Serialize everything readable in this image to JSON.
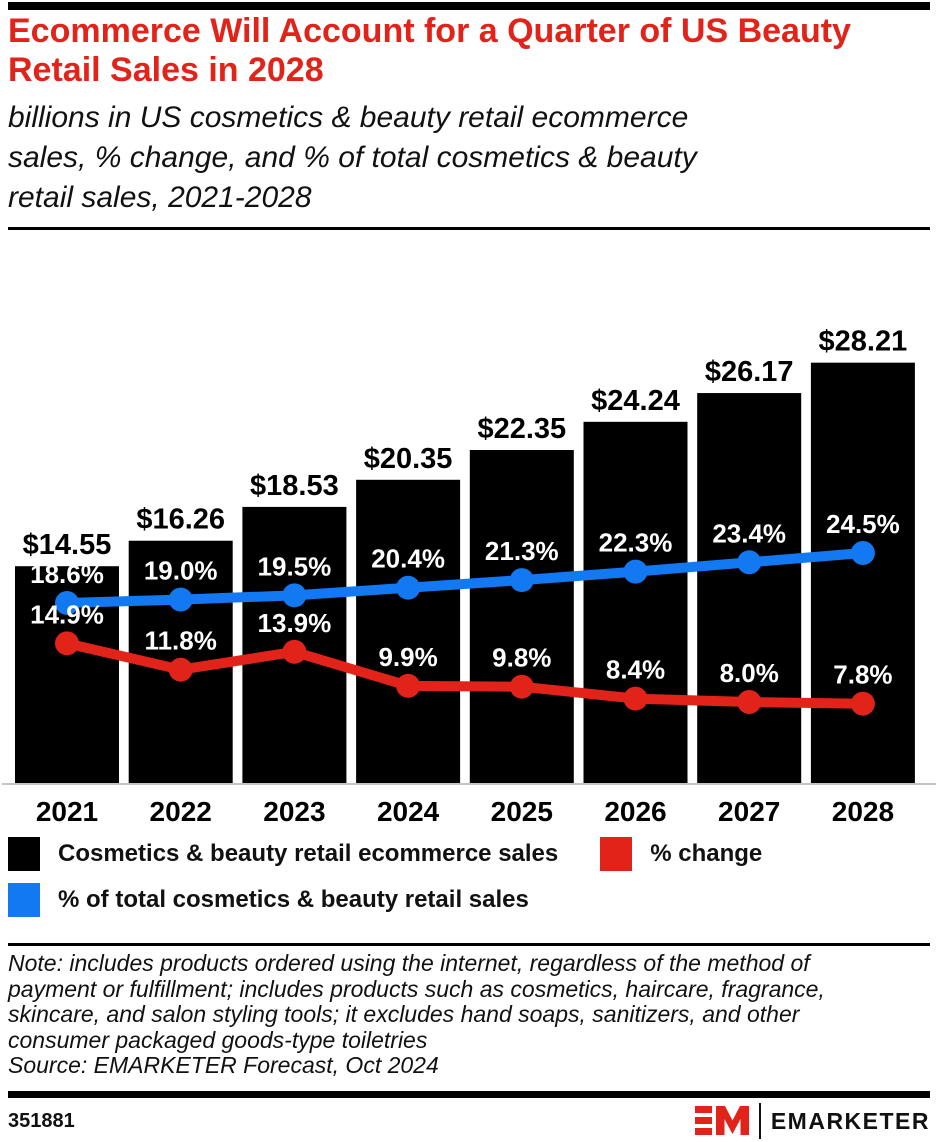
{
  "theme": {
    "accent_red": "#e2231a",
    "accent_blue": "#1379f2",
    "bar_black": "#000000",
    "baseline_gray": "#c4c4c4"
  },
  "header": {
    "title": "Ecommerce Will Account for a Quarter of US Beauty Retail Sales in 2028",
    "subtitle": "billions in US cosmetics & beauty retail ecommerce sales, % change, and % of total cosmetics & beauty retail sales, 2021-2028"
  },
  "chart_data": {
    "type": "bar",
    "subtype": "combo-bar-with-two-lines",
    "title": "Ecommerce Will Account for a Quarter of US Beauty Retail Sales in 2028",
    "categories": [
      "2021",
      "2022",
      "2023",
      "2024",
      "2025",
      "2026",
      "2027",
      "2028"
    ],
    "series": [
      {
        "name": "Cosmetics & beauty retail ecommerce sales",
        "type": "bar",
        "unit": "USD billions",
        "color": "#000000",
        "values": [
          14.55,
          16.26,
          18.53,
          20.35,
          22.35,
          24.24,
          26.17,
          28.21
        ],
        "labels": [
          "$14.55",
          "$16.26",
          "$18.53",
          "$20.35",
          "$22.35",
          "$24.24",
          "$26.17",
          "$28.21"
        ]
      },
      {
        "name": "% change",
        "type": "line",
        "unit": "percent",
        "color": "#e2231a",
        "values": [
          14.9,
          11.8,
          13.9,
          9.9,
          9.8,
          8.4,
          8.0,
          7.8
        ],
        "labels": [
          "14.9%",
          "11.8%",
          "13.9%",
          "9.9%",
          "9.8%",
          "8.4%",
          "8.0%",
          "7.8%"
        ]
      },
      {
        "name": "% of total cosmetics & beauty retail sales",
        "type": "line",
        "unit": "percent",
        "color": "#1379f2",
        "values": [
          18.6,
          19.0,
          19.5,
          20.4,
          21.3,
          22.3,
          23.4,
          24.5
        ],
        "labels": [
          "18.6%",
          "19.0%",
          "19.5%",
          "20.4%",
          "21.3%",
          "22.3%",
          "23.4%",
          "24.5%"
        ]
      }
    ],
    "xlabel": "",
    "ylabel": "",
    "grid": false,
    "legend_position": "bottom"
  },
  "legend": {
    "items": [
      {
        "label": "Cosmetics & beauty retail ecommerce sales",
        "color": "#000000"
      },
      {
        "label": "% change",
        "color": "#e2231a"
      },
      {
        "label": "% of total cosmetics & beauty retail sales",
        "color": "#1379f2"
      }
    ]
  },
  "notes": {
    "note": "Note: includes products ordered using the internet, regardless of the method of payment or fulfillment; includes products such as cosmetics, haircare, fragrance, skincare, and salon styling tools; it excludes hand soaps, sanitizers, and other consumer packaged goods-type toiletries",
    "source": "Source: EMARKETER Forecast, Oct 2024"
  },
  "footer": {
    "chart_id": "351881",
    "brand": "EMARKETER"
  }
}
